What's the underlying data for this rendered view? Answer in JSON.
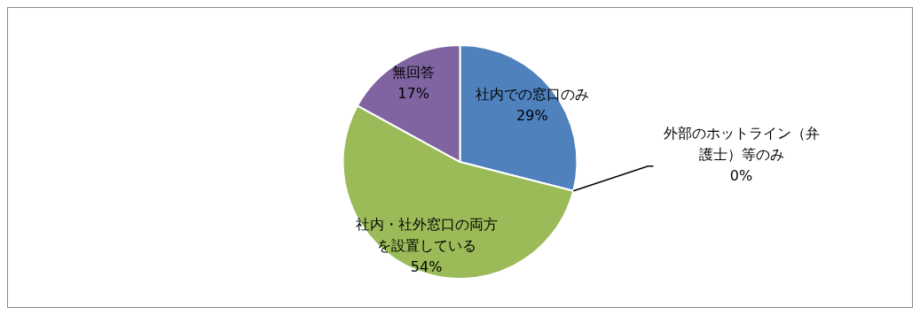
{
  "chart_data": {
    "type": "pie",
    "categories": [
      "社内での窓口のみ",
      "外部のホットライン（弁護士）等のみ",
      "社内・社外窓口の両方を設置している",
      "無回答"
    ],
    "values": [
      29,
      0,
      54,
      17
    ],
    "colors": [
      "#4f81bd",
      "#c0504d",
      "#9bbb59",
      "#8064a2"
    ],
    "value_labels": [
      "29%",
      "0%",
      "54%",
      "17%"
    ],
    "legend": false
  }
}
